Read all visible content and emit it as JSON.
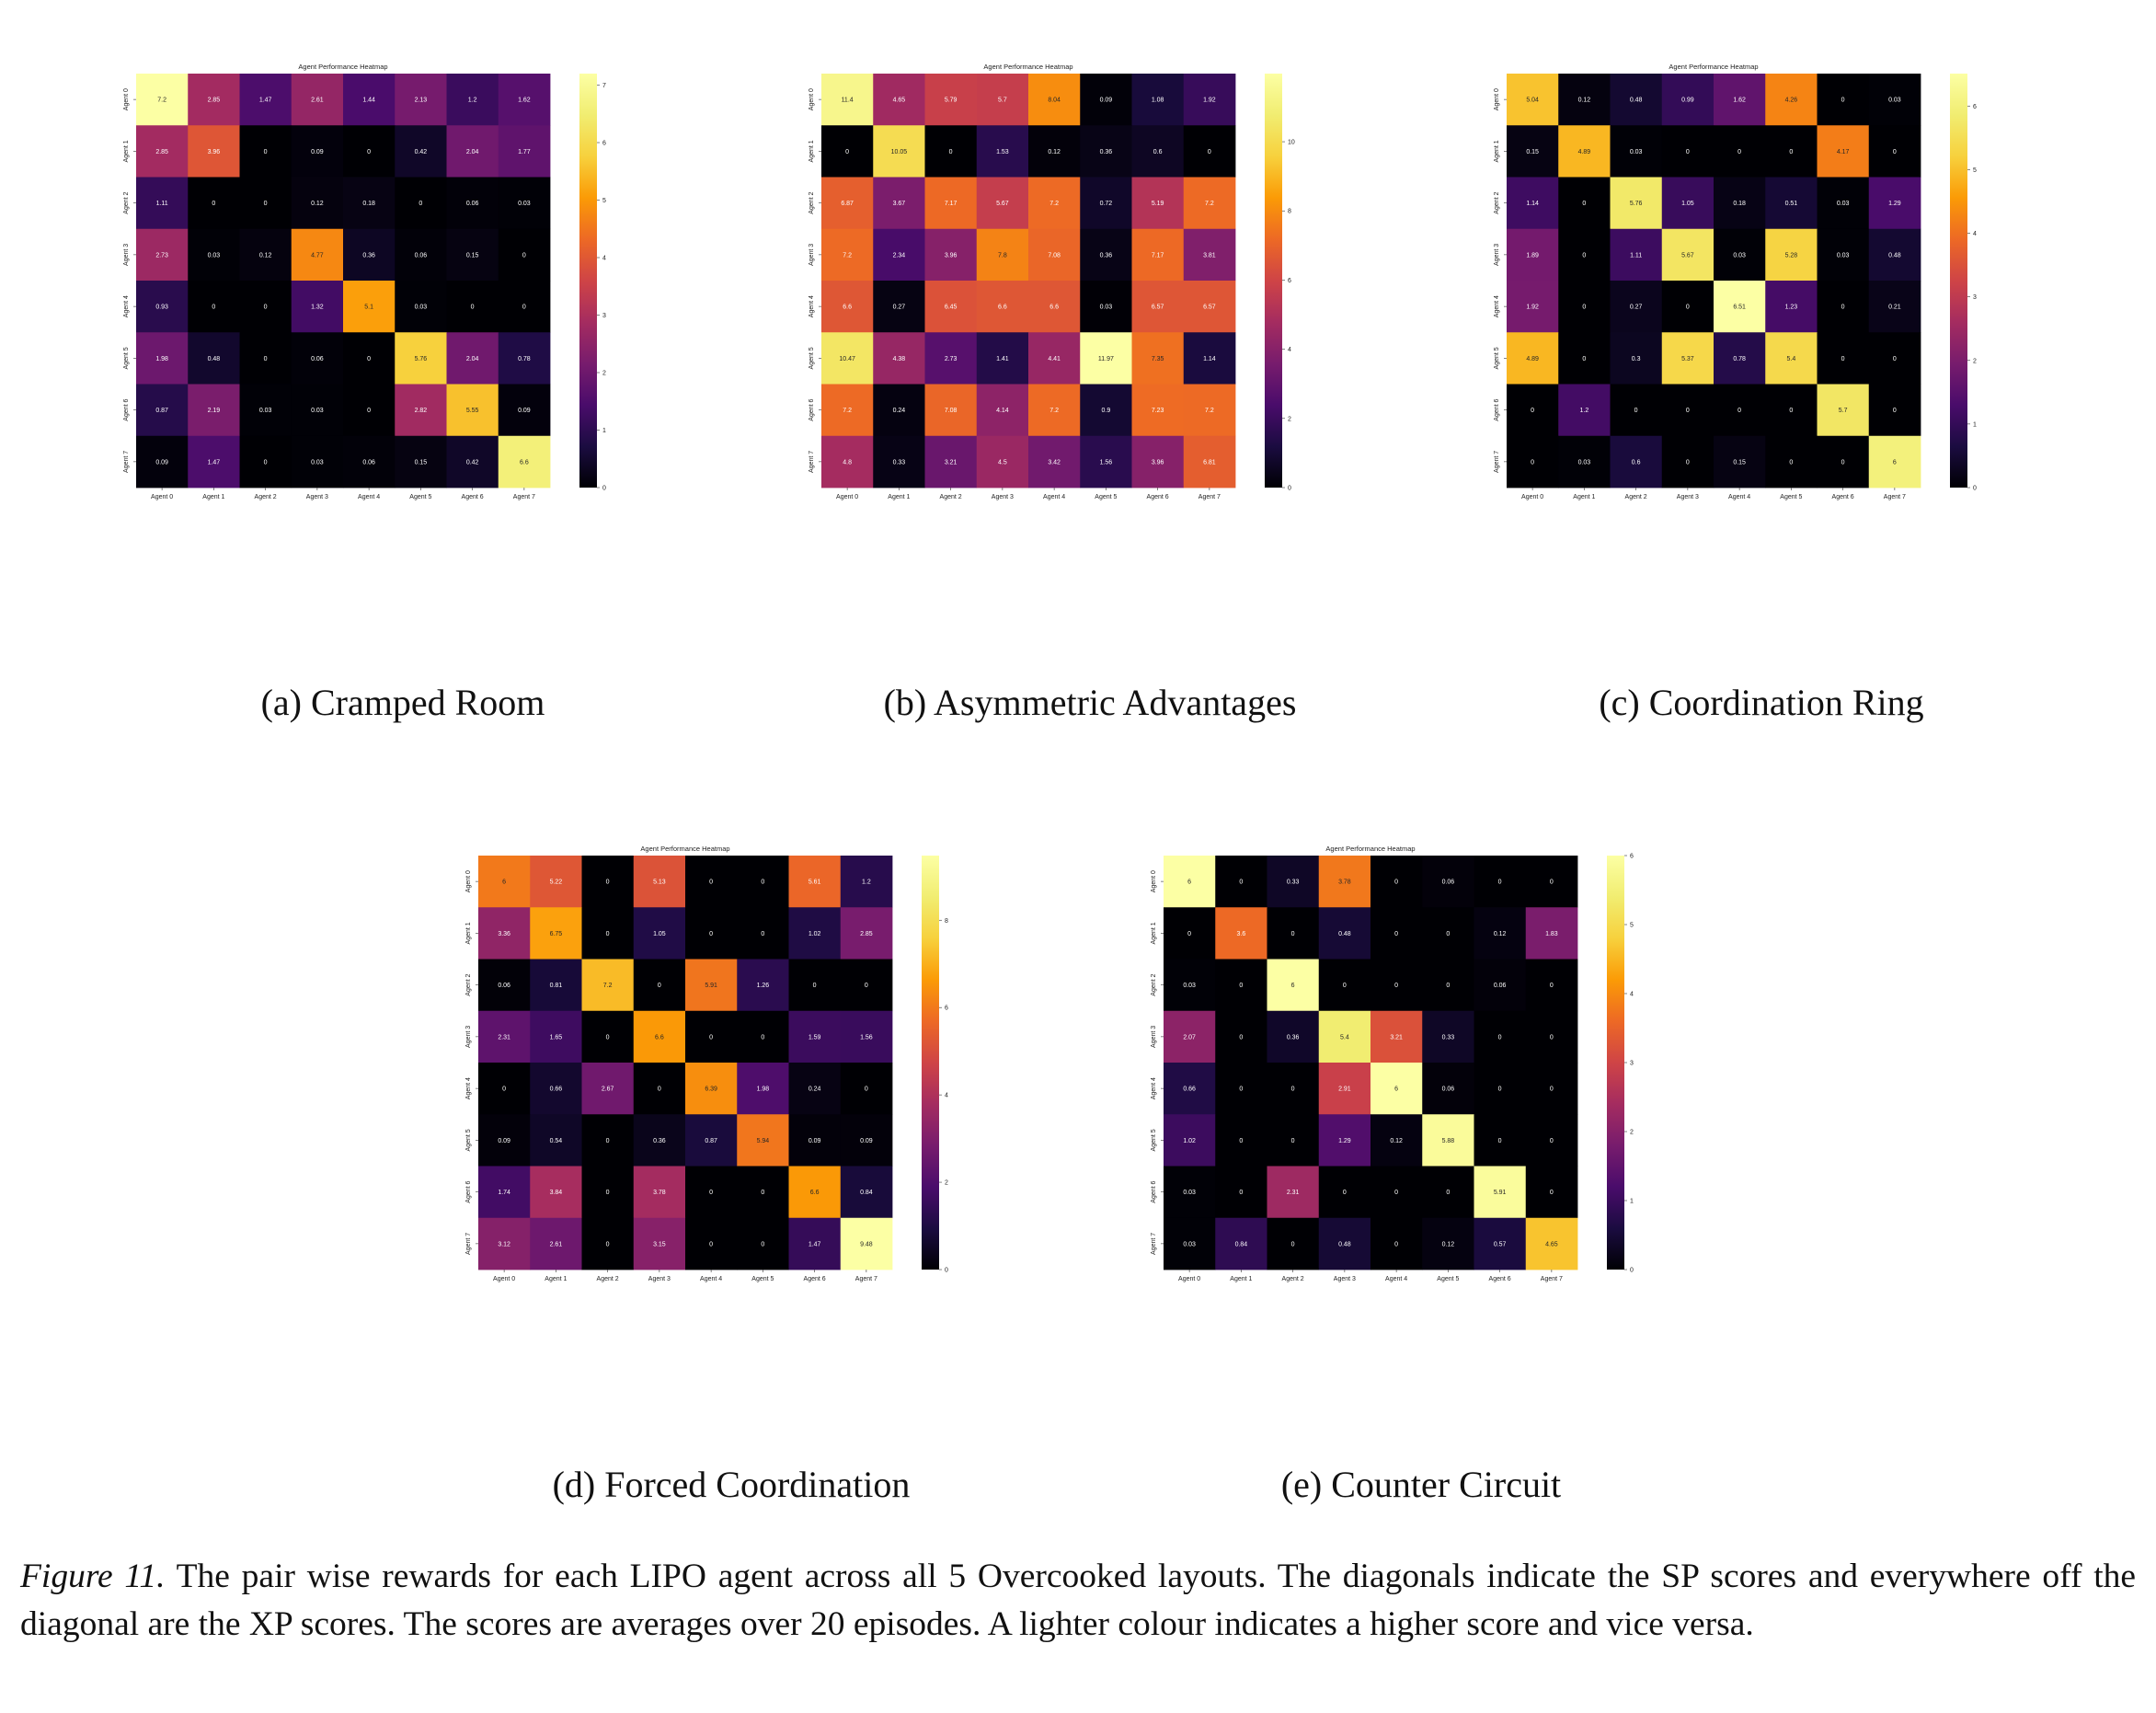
{
  "figure": {
    "label": "Figure 11.",
    "caption": "The pair wise rewards for each LIPO agent across all 5 Overcooked layouts.  The diagonals indicate the SP scores and everywhere off the diagonal are the XP scores. The scores are averages over 20 episodes. A lighter colour indicates a higher score and vice versa."
  },
  "subcaptions": [
    "(a) Cramped Room",
    "(b) Asymmetric Advantages",
    "(c) Coordination Ring",
    "(d) Forced Coordination",
    "(e) Counter Circuit"
  ],
  "colormap": {
    "name": "inferno",
    "low": "#000004",
    "mid": "#bc3754",
    "high": "#fcffa4"
  },
  "chart_data": [
    {
      "type": "heatmap",
      "title": "Agent Performance Heatmap",
      "x_categories": [
        "Agent 0",
        "Agent 1",
        "Agent 2",
        "Agent 3",
        "Agent 4",
        "Agent 5",
        "Agent 6",
        "Agent 7"
      ],
      "y_categories": [
        "Agent 0",
        "Agent 1",
        "Agent 2",
        "Agent 3",
        "Agent 4",
        "Agent 5",
        "Agent 6",
        "Agent 7"
      ],
      "vmin": 0,
      "vmax": 7.2,
      "colorbar_ticks": [
        "0",
        "1",
        "2",
        "3",
        "4",
        "5",
        "6",
        "7"
      ],
      "cell_labels": [
        [
          "7.2",
          "2.85",
          "1.47",
          "2.61",
          "1.44",
          "2.13",
          "1.2",
          "1.62"
        ],
        [
          "2.85",
          "3.96",
          "0",
          "0.09",
          "0",
          "0.42",
          "2.04",
          "1.77"
        ],
        [
          "1.11",
          "0",
          "0",
          "0.12",
          "0.18",
          "0",
          "0.06",
          "0.03"
        ],
        [
          "2.73",
          "0.03",
          "0.12",
          "4.77",
          "0.36",
          "0.06",
          "0.15",
          "0"
        ],
        [
          "0.93",
          "0",
          "0",
          "1.32",
          "5.1",
          "0.03",
          "0",
          "0"
        ],
        [
          "1.98",
          "0.48",
          "0",
          "0.06",
          "0",
          "5.76",
          "2.04",
          "0.78"
        ],
        [
          "0.87",
          "2.19",
          "0.03",
          "0.03",
          "0",
          "2.82",
          "5.55",
          "0.09"
        ],
        [
          "0.09",
          "1.47",
          "0",
          "0.03",
          "0.06",
          "0.15",
          "0.42",
          "6.6"
        ]
      ],
      "values": [
        [
          7.2,
          2.85,
          1.47,
          2.61,
          1.44,
          2.13,
          1.2,
          1.62
        ],
        [
          2.85,
          3.96,
          0,
          0.09,
          0,
          0.42,
          2.04,
          1.77
        ],
        [
          1.11,
          0,
          0,
          0.12,
          0.18,
          0,
          0.06,
          0.03
        ],
        [
          2.73,
          0.03,
          0.12,
          4.77,
          0.36,
          0.06,
          0.15,
          0
        ],
        [
          0.93,
          0,
          0,
          1.32,
          5.1,
          0.03,
          0,
          0
        ],
        [
          1.98,
          0.48,
          0,
          0.06,
          0,
          5.76,
          2.04,
          0.78
        ],
        [
          0.87,
          2.19,
          0.03,
          0.03,
          0,
          2.82,
          5.55,
          0.09
        ],
        [
          0.09,
          1.47,
          0,
          0.03,
          0.06,
          0.15,
          0.42,
          6.6
        ]
      ]
    },
    {
      "type": "heatmap",
      "title": "Agent Performance Heatmap",
      "x_categories": [
        "Agent 0",
        "Agent 1",
        "Agent 2",
        "Agent 3",
        "Agent 4",
        "Agent 5",
        "Agent 6",
        "Agent 7"
      ],
      "y_categories": [
        "Agent 0",
        "Agent 1",
        "Agent 2",
        "Agent 3",
        "Agent 4",
        "Agent 5",
        "Agent 6",
        "Agent 7"
      ],
      "vmin": 0,
      "vmax": 11.97,
      "colorbar_ticks": [
        "0",
        "2",
        "4",
        "6",
        "8",
        "10"
      ],
      "cell_labels": [
        [
          "11.4",
          "4.65",
          "5.79",
          "5.7",
          "8.04",
          "0.09",
          "1.08",
          "1.92"
        ],
        [
          "0",
          "10.05",
          "0",
          "1.53",
          "0.12",
          "0.36",
          "0.6",
          "0"
        ],
        [
          "6.87",
          "3.67",
          "7.17",
          "5.67",
          "7.2",
          "0.72",
          "5.19",
          "7.2"
        ],
        [
          "7.2",
          "2.34",
          "3.96",
          "7.8",
          "7.08",
          "0.36",
          "7.17",
          "3.81"
        ],
        [
          "6.6",
          "0.27",
          "6.45",
          "6.6",
          "6.6",
          "0.03",
          "6.57",
          "6.57"
        ],
        [
          "10.47",
          "4.38",
          "2.73",
          "1.41",
          "4.41",
          "11.97",
          "7.35",
          "1.14"
        ],
        [
          "7.2",
          "0.24",
          "7.08",
          "4.14",
          "7.2",
          "0.9",
          "7.23",
          "7.2"
        ],
        [
          "4.8",
          "0.33",
          "3.21",
          "4.5",
          "3.42",
          "1.56",
          "3.96",
          "6.81"
        ]
      ],
      "values": [
        [
          11.4,
          4.65,
          5.79,
          5.7,
          8.04,
          0.09,
          1.08,
          1.92
        ],
        [
          0,
          10.05,
          0,
          1.53,
          0.12,
          0.36,
          0.6,
          0
        ],
        [
          6.87,
          3.67,
          7.17,
          5.67,
          7.2,
          0.72,
          5.19,
          7.2
        ],
        [
          7.2,
          2.34,
          3.96,
          7.8,
          7.08,
          0.36,
          7.17,
          3.81
        ],
        [
          6.6,
          0.27,
          6.45,
          6.6,
          6.6,
          0.03,
          6.57,
          6.57
        ],
        [
          10.47,
          4.38,
          2.73,
          1.41,
          4.41,
          11.97,
          7.35,
          1.14
        ],
        [
          7.2,
          0.24,
          7.08,
          4.14,
          7.2,
          0.9,
          7.23,
          7.2
        ],
        [
          4.8,
          0.33,
          3.21,
          4.5,
          3.42,
          1.56,
          3.96,
          6.81
        ]
      ]
    },
    {
      "type": "heatmap",
      "title": "Agent Performance Heatmap",
      "x_categories": [
        "Agent 0",
        "Agent 1",
        "Agent 2",
        "Agent 3",
        "Agent 4",
        "Agent 5",
        "Agent 6",
        "Agent 7"
      ],
      "y_categories": [
        "Agent 0",
        "Agent 1",
        "Agent 2",
        "Agent 3",
        "Agent 4",
        "Agent 5",
        "Agent 6",
        "Agent 7"
      ],
      "vmin": 0,
      "vmax": 6.51,
      "colorbar_ticks": [
        "0",
        "1",
        "2",
        "3",
        "4",
        "5",
        "6"
      ],
      "cell_labels": [
        [
          "5.04",
          "0.12",
          "0.48",
          "0.99",
          "1.62",
          "4.26",
          "0",
          "0.03"
        ],
        [
          "0.15",
          "4.89",
          "0.03",
          "0",
          "0",
          "0",
          "4.17",
          "0"
        ],
        [
          "1.14",
          "0",
          "5.76",
          "1.05",
          "0.18",
          "0.51",
          "0.03",
          "1.29"
        ],
        [
          "1.89",
          "0",
          "1.11",
          "5.67",
          "0.03",
          "5.28",
          "0.03",
          "0.48"
        ],
        [
          "1.92",
          "0",
          "0.27",
          "0",
          "6.51",
          "1.23",
          "0",
          "0.21"
        ],
        [
          "4.89",
          "0",
          "0.3",
          "5.37",
          "0.78",
          "5.4",
          "0",
          "0"
        ],
        [
          "0",
          "1.2",
          "0",
          "0",
          "0",
          "0",
          "5.7",
          "0"
        ],
        [
          "0",
          "0.03",
          "0.6",
          "0",
          "0.15",
          "0",
          "0",
          "6"
        ]
      ],
      "values": [
        [
          5.04,
          0.12,
          0.48,
          0.99,
          1.62,
          4.26,
          0,
          0.03
        ],
        [
          0.15,
          4.89,
          0.03,
          0,
          0,
          0,
          4.17,
          0
        ],
        [
          1.14,
          0,
          5.76,
          1.05,
          0.18,
          0.51,
          0.03,
          1.29
        ],
        [
          1.89,
          0,
          1.11,
          5.67,
          0.03,
          5.28,
          0.03,
          0.48
        ],
        [
          1.92,
          0,
          0.27,
          0,
          6.51,
          1.23,
          0,
          0.21
        ],
        [
          4.89,
          0,
          0.3,
          5.37,
          0.78,
          5.4,
          0,
          0
        ],
        [
          0,
          1.2,
          0,
          0,
          0,
          0,
          5.7,
          0
        ],
        [
          0,
          0.03,
          0.6,
          0,
          0.15,
          0,
          0,
          6
        ]
      ]
    },
    {
      "type": "heatmap",
      "title": "Agent Performance Heatmap",
      "x_categories": [
        "Agent 0",
        "Agent 1",
        "Agent 2",
        "Agent 3",
        "Agent 4",
        "Agent 5",
        "Agent 6",
        "Agent 7"
      ],
      "y_categories": [
        "Agent 0",
        "Agent 1",
        "Agent 2",
        "Agent 3",
        "Agent 4",
        "Agent 5",
        "Agent 6",
        "Agent 7"
      ],
      "vmin": 0,
      "vmax": 9.48,
      "colorbar_ticks": [
        "0",
        "2",
        "4",
        "6",
        "8"
      ],
      "cell_labels": [
        [
          "6",
          "5.22",
          "0",
          "5.13",
          "0",
          "0",
          "5.61",
          "1.2"
        ],
        [
          "3.36",
          "6.75",
          "0",
          "1.05",
          "0",
          "0",
          "1.02",
          "2.85"
        ],
        [
          "0.06",
          "0.81",
          "7.2",
          "0",
          "5.91",
          "1.26",
          "0",
          "0"
        ],
        [
          "2.31",
          "1.65",
          "0",
          "6.6",
          "0",
          "0",
          "1.59",
          "1.56"
        ],
        [
          "0",
          "0.66",
          "2.67",
          "0",
          "6.39",
          "1.98",
          "0.24",
          "0"
        ],
        [
          "0.09",
          "0.54",
          "0",
          "0.36",
          "0.87",
          "5.94",
          "0.09",
          "0.09"
        ],
        [
          "1.74",
          "3.84",
          "0",
          "3.78",
          "0",
          "0",
          "6.6",
          "0.84"
        ],
        [
          "3.12",
          "2.61",
          "0",
          "3.15",
          "0",
          "0",
          "1.47",
          "9.48"
        ]
      ],
      "values": [
        [
          6,
          5.22,
          0,
          5.13,
          0,
          0,
          5.61,
          1.2
        ],
        [
          3.36,
          6.75,
          0,
          1.05,
          0,
          0,
          1.02,
          2.85
        ],
        [
          0.06,
          0.81,
          7.2,
          0,
          5.91,
          1.26,
          0,
          0
        ],
        [
          2.31,
          1.65,
          0,
          6.6,
          0,
          0,
          1.59,
          1.56
        ],
        [
          0,
          0.66,
          2.67,
          0,
          6.39,
          1.98,
          0.24,
          0
        ],
        [
          0.09,
          0.54,
          0,
          0.36,
          0.87,
          5.94,
          0.09,
          0.09
        ],
        [
          1.74,
          3.84,
          0,
          3.78,
          0,
          0,
          6.6,
          0.84
        ],
        [
          3.12,
          2.61,
          0,
          3.15,
          0,
          0,
          1.47,
          9.48
        ]
      ]
    },
    {
      "type": "heatmap",
      "title": "Agent Performance Heatmap",
      "x_categories": [
        "Agent 0",
        "Agent 1",
        "Agent 2",
        "Agent 3",
        "Agent 4",
        "Agent 5",
        "Agent 6",
        "Agent 7"
      ],
      "y_categories": [
        "Agent 0",
        "Agent 1",
        "Agent 2",
        "Agent 3",
        "Agent 4",
        "Agent 5",
        "Agent 6",
        "Agent 7"
      ],
      "vmin": 0,
      "vmax": 6,
      "colorbar_ticks": [
        "0",
        "1",
        "2",
        "3",
        "4",
        "5",
        "6"
      ],
      "cell_labels": [
        [
          "6",
          "0",
          "0.33",
          "3.78",
          "0",
          "0.06",
          "0",
          "0"
        ],
        [
          "0",
          "3.6",
          "0",
          "0.48",
          "0",
          "0",
          "0.12",
          "1.83"
        ],
        [
          "0.03",
          "0",
          "6",
          "0",
          "0",
          "0",
          "0.06",
          "0"
        ],
        [
          "2.07",
          "0",
          "0.36",
          "5.4",
          "3.21",
          "0.33",
          "0",
          "0"
        ],
        [
          "0.66",
          "0",
          "0",
          "2.91",
          "6",
          "0.06",
          "0",
          "0"
        ],
        [
          "1.02",
          "0",
          "0",
          "1.29",
          "0.12",
          "5.88",
          "0",
          "0"
        ],
        [
          "0.03",
          "0",
          "2.31",
          "0",
          "0",
          "0",
          "5.91",
          "0"
        ],
        [
          "0.03",
          "0.84",
          "0",
          "0.48",
          "0",
          "0.12",
          "0.57",
          "4.65"
        ]
      ],
      "values": [
        [
          6,
          0,
          0.33,
          3.78,
          0,
          0.06,
          0,
          0
        ],
        [
          0,
          3.6,
          0,
          0.48,
          0,
          0,
          0.12,
          1.83
        ],
        [
          0.03,
          0,
          6,
          0,
          0,
          0,
          0.06,
          0
        ],
        [
          2.07,
          0,
          0.36,
          5.4,
          3.21,
          0.33,
          0,
          0
        ],
        [
          0.66,
          0,
          0,
          2.91,
          6,
          0.06,
          0,
          0
        ],
        [
          1.02,
          0,
          0,
          1.29,
          0.12,
          5.88,
          0,
          0
        ],
        [
          0.03,
          0,
          2.31,
          0,
          0,
          0,
          5.91,
          0
        ],
        [
          0.03,
          0.84,
          0,
          0.48,
          0,
          0.12,
          0.57,
          4.65
        ]
      ]
    }
  ]
}
